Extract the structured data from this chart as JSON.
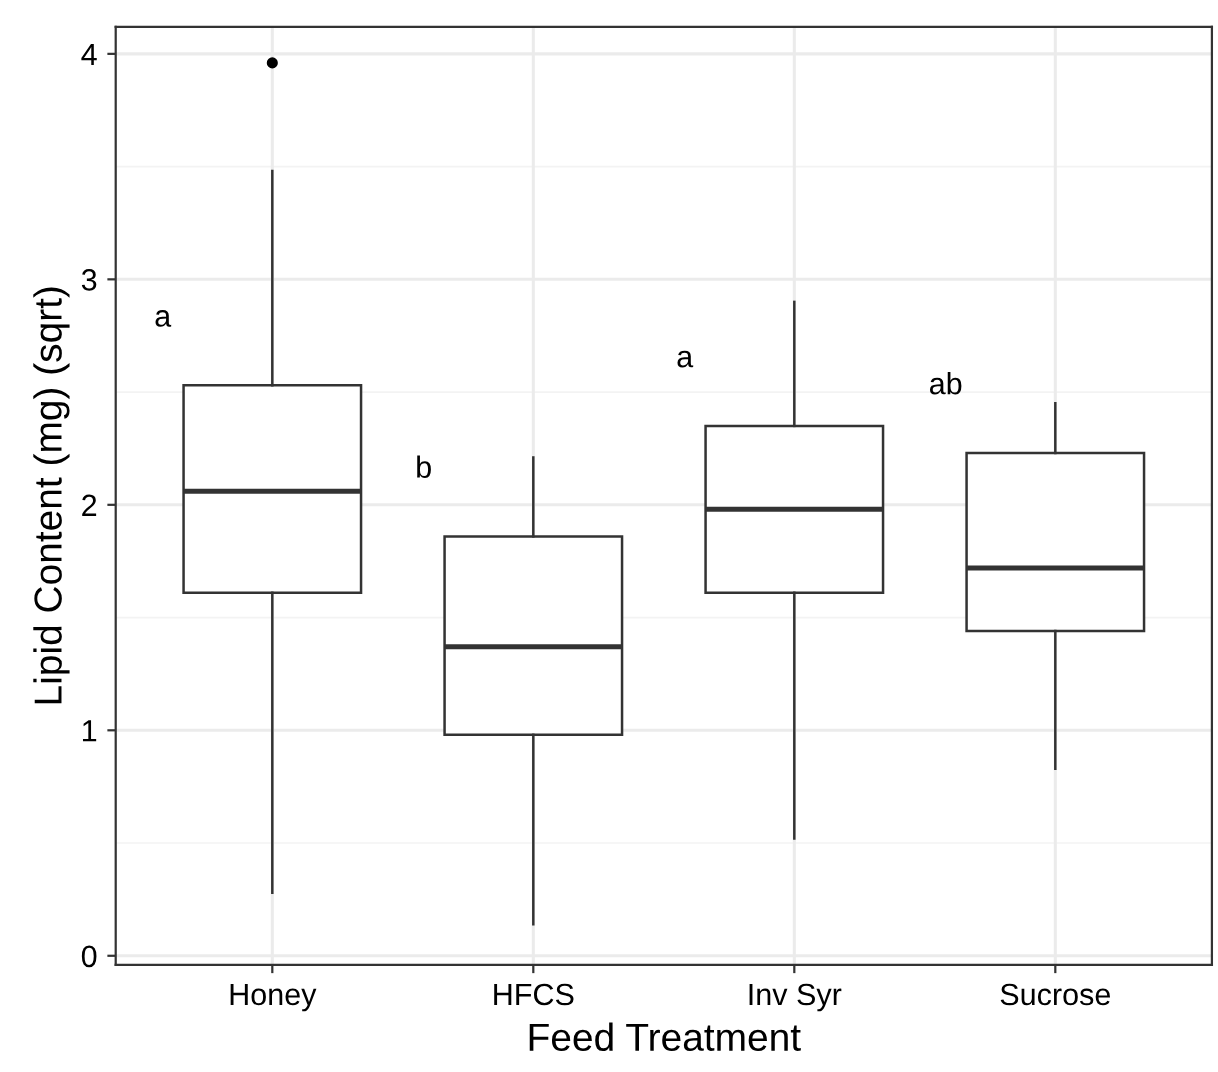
{
  "chart_data": {
    "type": "box",
    "xlabel": "Feed Treatment",
    "ylabel": "Lipid Content (mg) (sqrt)",
    "categories": [
      "Honey",
      "HFCS",
      "Inv Syr",
      "Sucrose"
    ],
    "boxes": [
      {
        "low": 0.28,
        "q1": 1.61,
        "median": 2.06,
        "q3": 2.53,
        "high": 3.48,
        "outliers": [
          3.96
        ]
      },
      {
        "low": 0.14,
        "q1": 0.98,
        "median": 1.37,
        "q3": 1.86,
        "high": 2.21
      },
      {
        "low": 0.52,
        "q1": 1.61,
        "median": 1.98,
        "q3": 2.35,
        "high": 2.9
      },
      {
        "low": 0.83,
        "q1": 1.44,
        "median": 1.72,
        "q3": 2.23,
        "high": 2.45
      }
    ],
    "color": "#333333",
    "ylim": [
      -0.04,
      4.12
    ],
    "yticks": [
      0,
      1,
      2,
      3,
      4
    ],
    "grid": true,
    "annotations": [
      "a",
      "b",
      "a",
      "ab"
    ]
  }
}
